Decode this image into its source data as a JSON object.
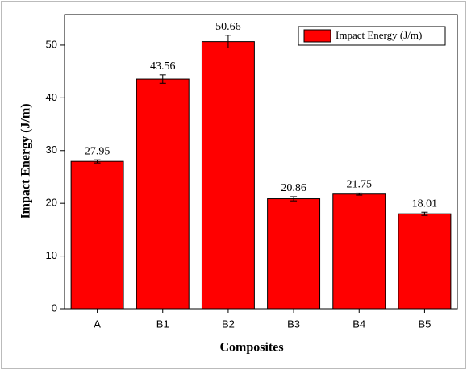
{
  "chart_data": {
    "type": "bar",
    "x_label": "Composites",
    "y_label": "Impact Energy (J/m)",
    "categories": [
      "A",
      "B1",
      "B2",
      "B3",
      "B4",
      "B5"
    ],
    "series": [
      {
        "name": "Impact Energy (J/m)",
        "color": "#ff0000",
        "values": [
          27.95,
          43.56,
          50.66,
          20.86,
          21.75,
          18.01
        ],
        "errors": [
          0.3,
          0.8,
          1.2,
          0.4,
          0.2,
          0.3
        ]
      }
    ],
    "ylim": [
      0,
      55.8
    ],
    "yticks": [
      0,
      10,
      20,
      30,
      40,
      50
    ],
    "grid": false,
    "legend": "upper right"
  }
}
